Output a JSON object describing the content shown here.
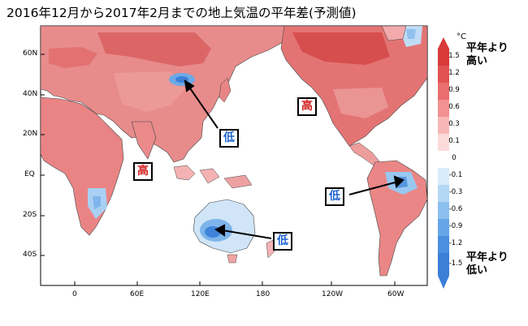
{
  "title": "2016年12月から2017年2月までの地上気温の平年差(予測値)",
  "y_ticks": [
    "60N",
    "40N",
    "20N",
    "EQ",
    "20S",
    "40S"
  ],
  "x_ticks": [
    "0",
    "60E",
    "120E",
    "180",
    "120W",
    "60W"
  ],
  "annotations": {
    "high_pacific": "高",
    "high_africa": "高",
    "low_asia": "低",
    "low_australia": "低",
    "low_southamerica": "低"
  },
  "legend": {
    "unit": "°C",
    "labels": [
      "1.5",
      "1.2",
      "0.9",
      "0.6",
      "0.3",
      "0.1",
      "0",
      "-0.1",
      "-0.3",
      "-0.6",
      "-0.9",
      "-1.2",
      "-1.5"
    ],
    "top_note": [
      "平年より",
      "高い"
    ],
    "bottom_note": [
      "平年より",
      "低い"
    ],
    "colors": [
      "#d93a3a",
      "#e25252",
      "#ea6e6e",
      "#f29191",
      "#f8b7b7",
      "#fcdada",
      "#ffffff",
      "#d8ecfb",
      "#b3d8f6",
      "#8cc0f0",
      "#66a6e8",
      "#4a8fe0",
      "#3b7fd9"
    ]
  }
}
